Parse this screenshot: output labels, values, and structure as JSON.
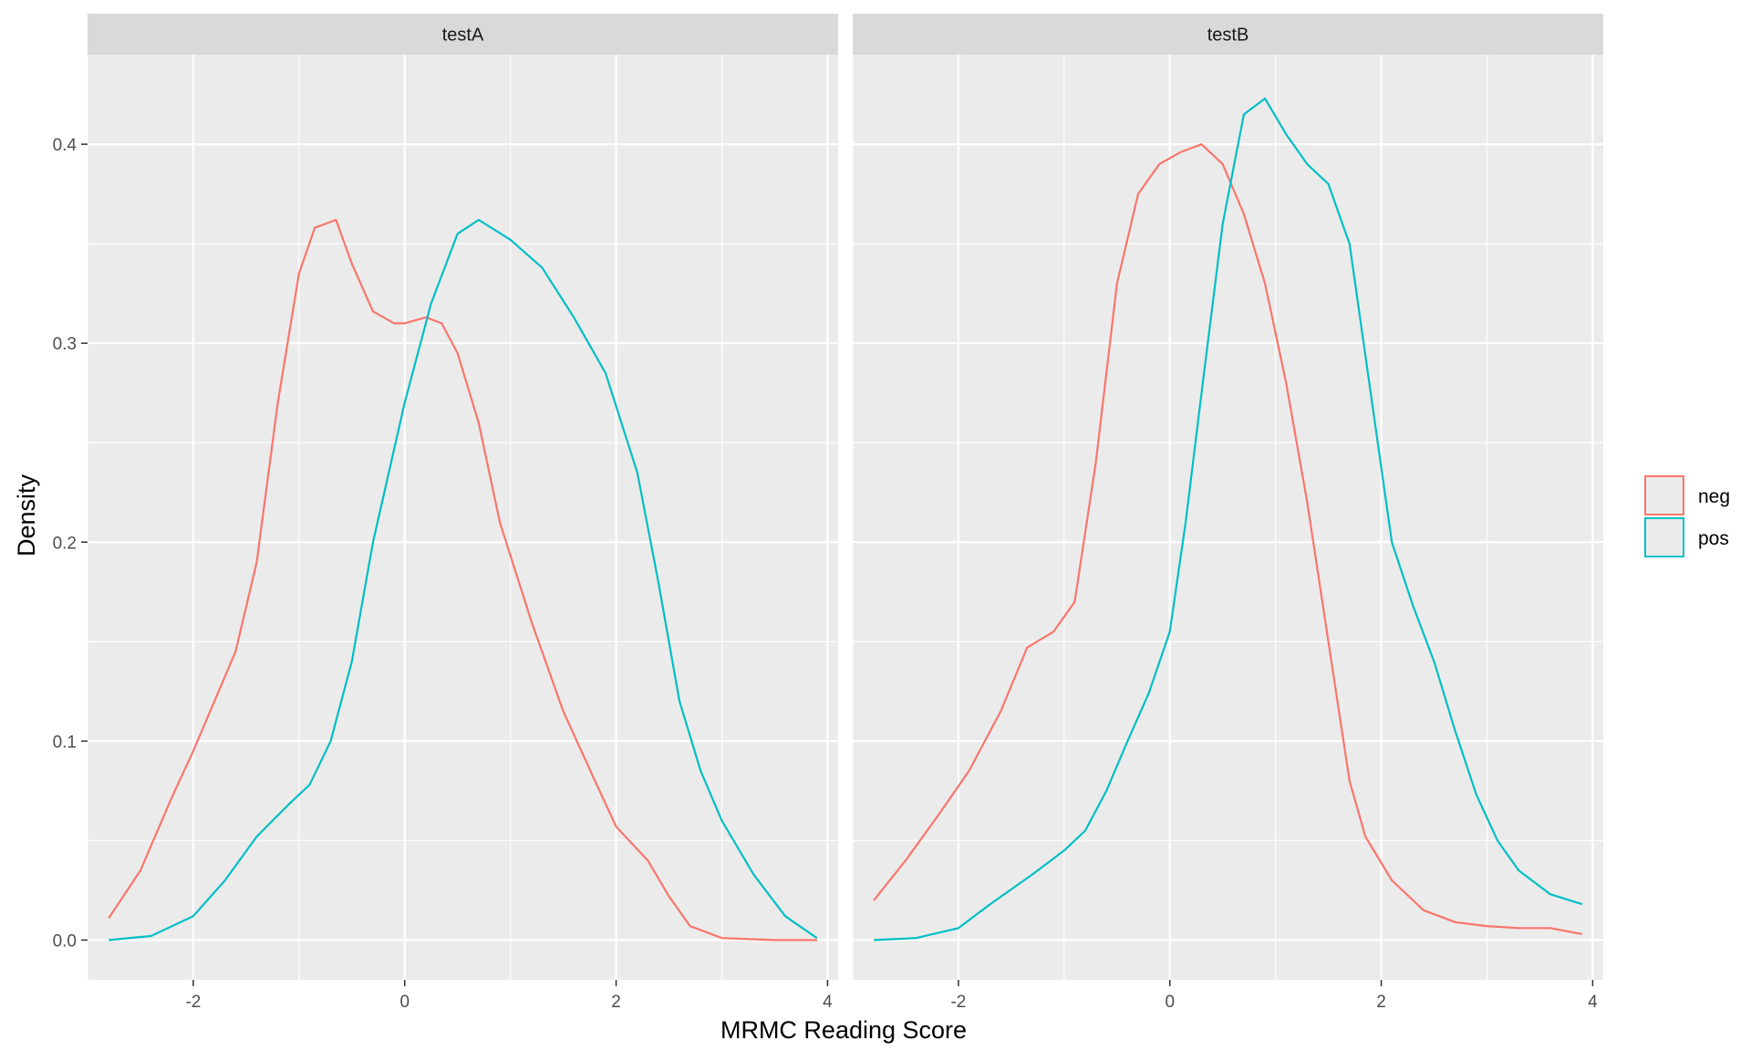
{
  "chart_data": {
    "type": "line",
    "subtype": "density",
    "xlabel": "MRMC Reading Score",
    "ylabel": "Density",
    "xlim": [
      -3.0,
      4.1
    ],
    "ylim": [
      -0.02,
      0.445
    ],
    "x_ticks": [
      -2,
      0,
      2,
      4
    ],
    "x_tick_labels": [
      "-2",
      "0",
      "2",
      "4"
    ],
    "y_ticks": [
      0.0,
      0.1,
      0.2,
      0.3,
      0.4
    ],
    "y_tick_labels": [
      "0.0",
      "0.1",
      "0.2",
      "0.3",
      "0.4"
    ],
    "grid": true,
    "legend": {
      "placement": "right",
      "entries": [
        "neg",
        "pos"
      ]
    },
    "colors": {
      "neg": "#F8766D",
      "pos": "#00BFC4"
    },
    "panels": [
      {
        "strip": "testA",
        "series": [
          {
            "name": "neg",
            "color": "#F8766D",
            "points": [
              [
                -2.8,
                0.011
              ],
              [
                -2.5,
                0.035
              ],
              [
                -2.2,
                0.072
              ],
              [
                -2.0,
                0.095
              ],
              [
                -1.8,
                0.12
              ],
              [
                -1.6,
                0.145
              ],
              [
                -1.4,
                0.19
              ],
              [
                -1.2,
                0.27
              ],
              [
                -1.0,
                0.335
              ],
              [
                -0.85,
                0.358
              ],
              [
                -0.65,
                0.362
              ],
              [
                -0.5,
                0.34
              ],
              [
                -0.3,
                0.316
              ],
              [
                -0.1,
                0.31
              ],
              [
                0.0,
                0.31
              ],
              [
                0.2,
                0.313
              ],
              [
                0.35,
                0.31
              ],
              [
                0.5,
                0.295
              ],
              [
                0.7,
                0.26
              ],
              [
                0.9,
                0.21
              ],
              [
                1.2,
                0.16
              ],
              [
                1.5,
                0.115
              ],
              [
                1.8,
                0.08
              ],
              [
                2.0,
                0.057
              ],
              [
                2.3,
                0.04
              ],
              [
                2.5,
                0.022
              ],
              [
                2.7,
                0.007
              ],
              [
                3.0,
                0.001
              ],
              [
                3.5,
                0.0
              ],
              [
                3.9,
                0.0
              ]
            ]
          },
          {
            "name": "pos",
            "color": "#00BFC4",
            "points": [
              [
                -2.8,
                0.0
              ],
              [
                -2.4,
                0.002
              ],
              [
                -2.0,
                0.012
              ],
              [
                -1.7,
                0.03
              ],
              [
                -1.4,
                0.052
              ],
              [
                -1.1,
                0.068
              ],
              [
                -0.9,
                0.078
              ],
              [
                -0.7,
                0.1
              ],
              [
                -0.5,
                0.14
              ],
              [
                -0.3,
                0.2
              ],
              [
                0.0,
                0.27
              ],
              [
                0.25,
                0.32
              ],
              [
                0.5,
                0.355
              ],
              [
                0.7,
                0.362
              ],
              [
                1.0,
                0.352
              ],
              [
                1.3,
                0.338
              ],
              [
                1.6,
                0.313
              ],
              [
                1.9,
                0.285
              ],
              [
                2.2,
                0.235
              ],
              [
                2.4,
                0.18
              ],
              [
                2.6,
                0.12
              ],
              [
                2.8,
                0.085
              ],
              [
                3.0,
                0.06
              ],
              [
                3.3,
                0.033
              ],
              [
                3.6,
                0.012
              ],
              [
                3.9,
                0.001
              ]
            ]
          }
        ]
      },
      {
        "strip": "testB",
        "series": [
          {
            "name": "neg",
            "color": "#F8766D",
            "points": [
              [
                -2.8,
                0.02
              ],
              [
                -2.5,
                0.04
              ],
              [
                -2.2,
                0.062
              ],
              [
                -1.9,
                0.085
              ],
              [
                -1.6,
                0.115
              ],
              [
                -1.35,
                0.147
              ],
              [
                -1.1,
                0.155
              ],
              [
                -0.9,
                0.17
              ],
              [
                -0.7,
                0.24
              ],
              [
                -0.5,
                0.33
              ],
              [
                -0.3,
                0.375
              ],
              [
                -0.1,
                0.39
              ],
              [
                0.1,
                0.396
              ],
              [
                0.3,
                0.4
              ],
              [
                0.5,
                0.39
              ],
              [
                0.7,
                0.365
              ],
              [
                0.9,
                0.33
              ],
              [
                1.1,
                0.28
              ],
              [
                1.3,
                0.22
              ],
              [
                1.5,
                0.15
              ],
              [
                1.7,
                0.08
              ],
              [
                1.85,
                0.052
              ],
              [
                2.1,
                0.03
              ],
              [
                2.4,
                0.015
              ],
              [
                2.7,
                0.009
              ],
              [
                3.0,
                0.007
              ],
              [
                3.3,
                0.006
              ],
              [
                3.6,
                0.006
              ],
              [
                3.9,
                0.003
              ]
            ]
          },
          {
            "name": "pos",
            "color": "#00BFC4",
            "points": [
              [
                -2.8,
                0.0
              ],
              [
                -2.4,
                0.001
              ],
              [
                -2.0,
                0.006
              ],
              [
                -1.7,
                0.018
              ],
              [
                -1.3,
                0.033
              ],
              [
                -1.0,
                0.045
              ],
              [
                -0.8,
                0.055
              ],
              [
                -0.6,
                0.075
              ],
              [
                -0.4,
                0.1
              ],
              [
                -0.2,
                0.124
              ],
              [
                0.0,
                0.155
              ],
              [
                0.15,
                0.21
              ],
              [
                0.3,
                0.275
              ],
              [
                0.5,
                0.36
              ],
              [
                0.7,
                0.415
              ],
              [
                0.9,
                0.423
              ],
              [
                1.1,
                0.405
              ],
              [
                1.3,
                0.39
              ],
              [
                1.5,
                0.38
              ],
              [
                1.7,
                0.35
              ],
              [
                1.9,
                0.275
              ],
              [
                2.1,
                0.2
              ],
              [
                2.3,
                0.168
              ],
              [
                2.5,
                0.14
              ],
              [
                2.7,
                0.105
              ],
              [
                2.9,
                0.073
              ],
              [
                3.1,
                0.05
              ],
              [
                3.3,
                0.035
              ],
              [
                3.6,
                0.023
              ],
              [
                3.9,
                0.018
              ]
            ]
          }
        ]
      }
    ]
  }
}
